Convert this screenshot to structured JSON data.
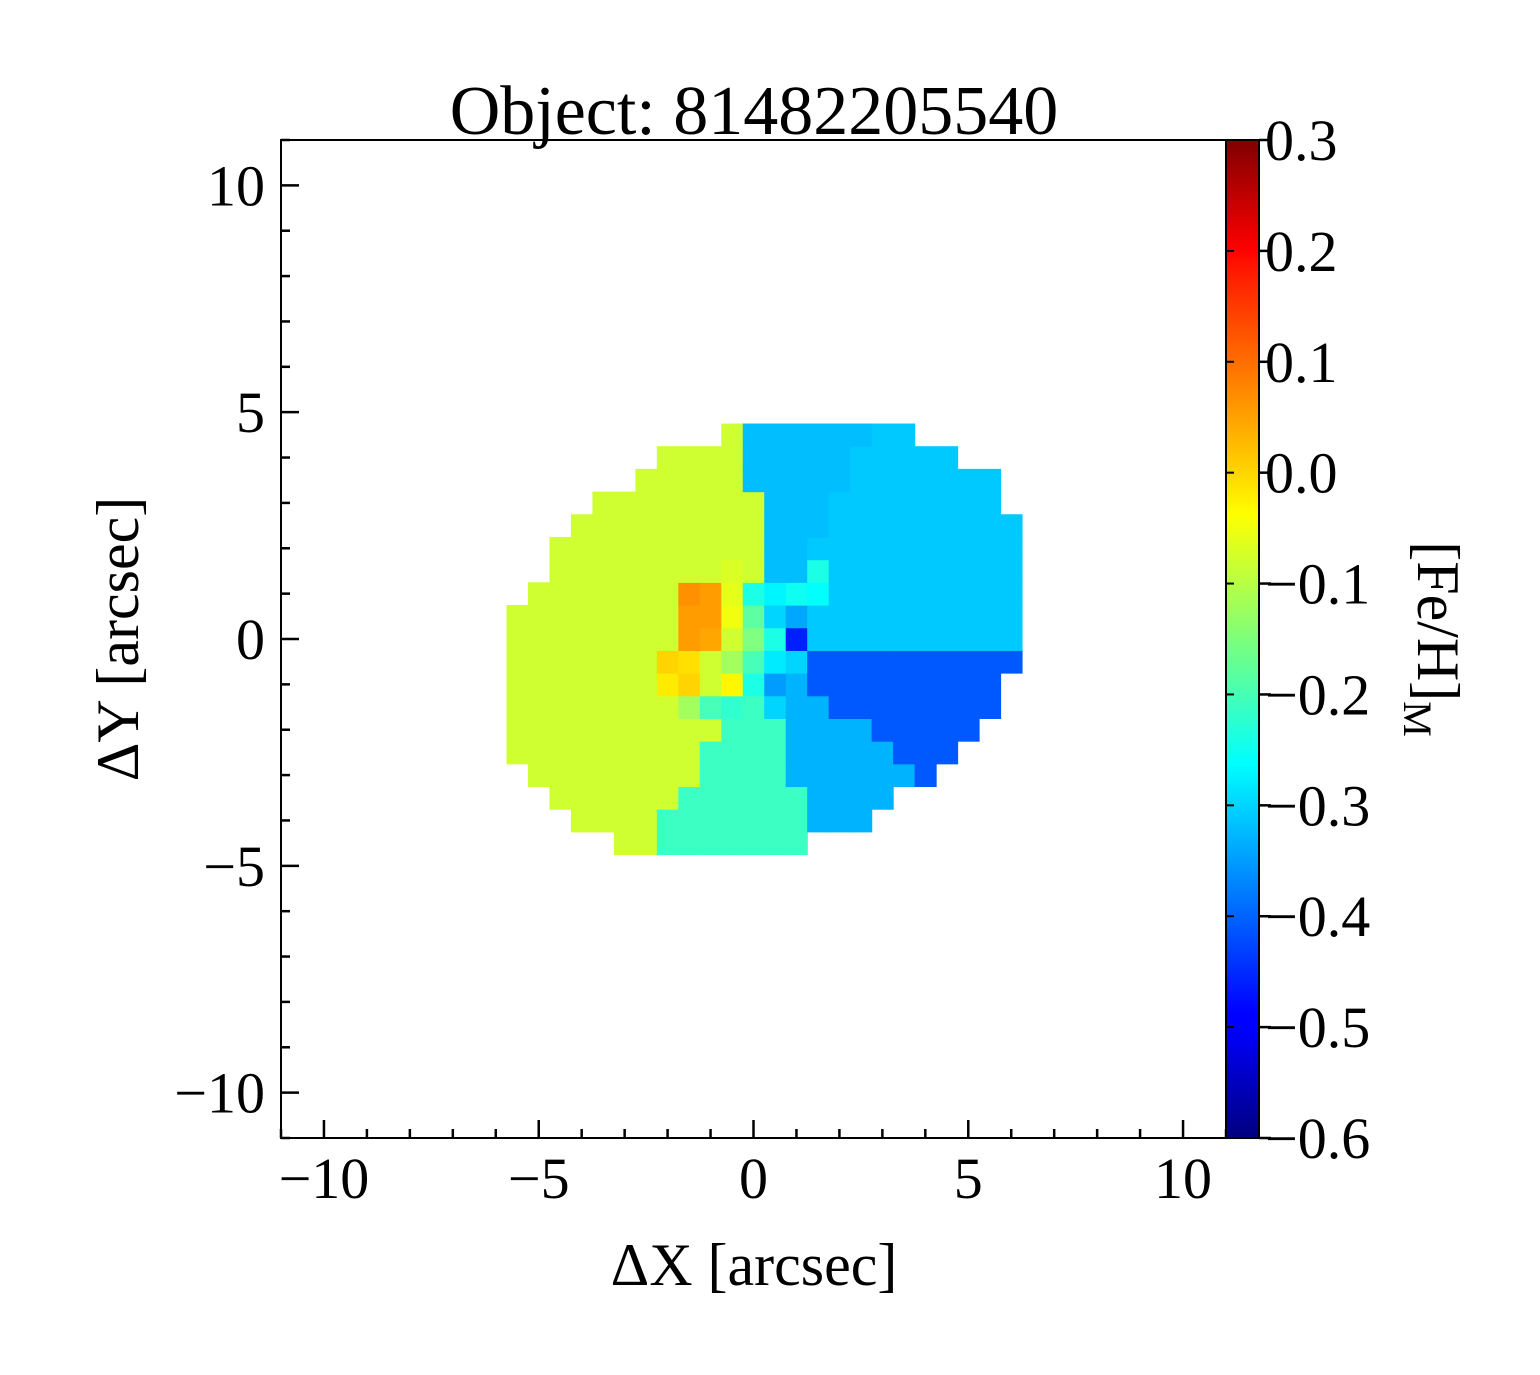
{
  "chart_data": {
    "type": "heatmap",
    "title": "Object: 81482205540",
    "xlabel": "ΔX [arcsec]",
    "ylabel": "ΔY [arcsec]",
    "xlim": [
      -11,
      11
    ],
    "ylim": [
      -11,
      11
    ],
    "x_ticks": [
      -10,
      -5,
      0,
      5,
      10
    ],
    "x_tick_labels": [
      "−10",
      "−5",
      "0",
      "5",
      "10"
    ],
    "y_ticks": [
      -10,
      -5,
      0,
      5,
      10
    ],
    "y_tick_labels": [
      "−10",
      "−5",
      "0",
      "5",
      "10"
    ],
    "colorbar": {
      "label": "[Fe/H]",
      "label_subscript": "M",
      "range": [
        -0.6,
        0.3
      ],
      "colormap": "jet",
      "ticks": [
        0.3,
        0.2,
        0.1,
        0.0,
        -0.1,
        -0.2,
        -0.3,
        -0.4,
        -0.5,
        -0.6
      ],
      "tick_labels": [
        "0.3",
        "0.2",
        "0.1",
        "0.0",
        "−0.1",
        "−0.2",
        "−0.3",
        "−0.4",
        "−0.5",
        "−0.6"
      ]
    },
    "map": {
      "pixel_size": 0.5,
      "ellipse": {
        "center": [
          0.3,
          0.0
        ],
        "semi_major": 6.4,
        "semi_minor": 4.6,
        "angle_deg": 22
      },
      "regions": [
        {
          "name": "west",
          "from_deg": 95,
          "to_deg": 240,
          "value": -0.08
        },
        {
          "name": "south-west",
          "from_deg": 240,
          "to_deg": 282,
          "value": -0.21
        },
        {
          "name": "south",
          "from_deg": 282,
          "to_deg": 318,
          "value": -0.33
        },
        {
          "name": "south-east",
          "from_deg": 318,
          "to_deg": 358,
          "value": -0.41
        },
        {
          "name": "north-east",
          "from_deg": -2,
          "to_deg": 63,
          "value": -0.31
        },
        {
          "name": "north",
          "from_deg": 63,
          "to_deg": 95,
          "value": -0.32
        }
      ],
      "core": [
        {
          "x": -1.5,
          "y": 0.5,
          "value": 0.05
        },
        {
          "x": -1.0,
          "y": 0.5,
          "value": 0.05
        },
        {
          "x": -1.5,
          "y": 0.0,
          "value": 0.05
        },
        {
          "x": -1.0,
          "y": 0.0,
          "value": 0.04
        },
        {
          "x": -1.0,
          "y": 1.0,
          "value": 0.05
        },
        {
          "x": -1.5,
          "y": 1.0,
          "value": 0.06
        },
        {
          "x": -1.0,
          "y": 0.3,
          "value": 0.12
        },
        {
          "x": -2.0,
          "y": -0.5,
          "value": 0.0
        },
        {
          "x": -1.5,
          "y": -0.5,
          "value": -0.01
        },
        {
          "x": -2.0,
          "y": -1.0,
          "value": -0.02
        },
        {
          "x": -1.5,
          "y": -1.0,
          "value": 0.0
        },
        {
          "x": -0.5,
          "y": -1.0,
          "value": -0.03
        },
        {
          "x": -0.5,
          "y": 0.5,
          "value": -0.05
        },
        {
          "x": -0.5,
          "y": 0.0,
          "value": -0.08
        },
        {
          "x": -0.5,
          "y": 1.0,
          "value": -0.06
        },
        {
          "x": -0.5,
          "y": 1.5,
          "value": -0.07
        },
        {
          "x": -0.5,
          "y": -0.5,
          "value": -0.12
        },
        {
          "x": 0.0,
          "y": 0.0,
          "value": -0.15
        },
        {
          "x": 0.0,
          "y": 0.5,
          "value": -0.18
        },
        {
          "x": 0.0,
          "y": 1.0,
          "value": -0.24
        },
        {
          "x": 0.5,
          "y": 1.0,
          "value": -0.27
        },
        {
          "x": 1.0,
          "y": 1.0,
          "value": -0.25
        },
        {
          "x": 1.5,
          "y": 1.0,
          "value": -0.26
        },
        {
          "x": 1.5,
          "y": 1.5,
          "value": -0.24
        },
        {
          "x": 0.0,
          "y": -0.5,
          "value": -0.2
        },
        {
          "x": 0.5,
          "y": -0.5,
          "value": -0.28
        },
        {
          "x": 1.0,
          "y": -0.5,
          "value": -0.3
        },
        {
          "x": 0.5,
          "y": 0.0,
          "value": -0.24
        },
        {
          "x": 1.0,
          "y": 0.0,
          "value": -0.46
        },
        {
          "x": 1.0,
          "y": 0.5,
          "value": -0.34
        },
        {
          "x": 0.5,
          "y": 0.5,
          "value": -0.3
        },
        {
          "x": -1.0,
          "y": -1.5,
          "value": -0.2
        },
        {
          "x": -0.5,
          "y": -1.5,
          "value": -0.22
        },
        {
          "x": 0.0,
          "y": -1.0,
          "value": -0.24
        },
        {
          "x": 0.5,
          "y": -1.0,
          "value": -0.35
        },
        {
          "x": 0.5,
          "y": -1.5,
          "value": -0.3
        },
        {
          "x": -1.5,
          "y": -1.5,
          "value": -0.12
        }
      ]
    }
  }
}
